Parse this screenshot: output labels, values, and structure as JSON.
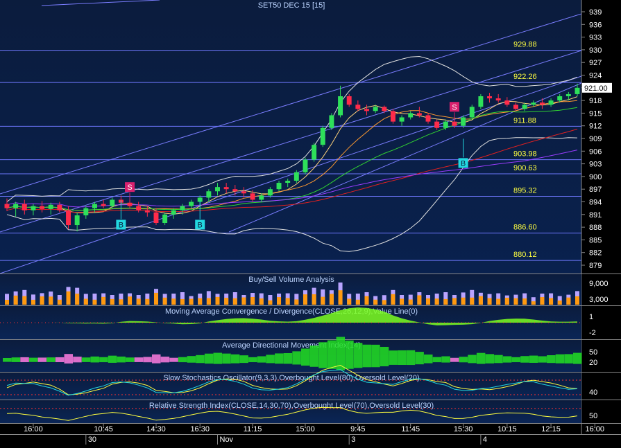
{
  "chart_data": {
    "type": "line",
    "title": "SET50 DEC 15   [15]",
    "last_price": "921.00",
    "price_axis_ticks": [
      "939",
      "936",
      "933",
      "930",
      "927",
      "924",
      "921",
      "918",
      "915",
      "912",
      "909",
      "906",
      "903",
      "900",
      "897",
      "894",
      "891",
      "888",
      "885",
      "882",
      "879"
    ],
    "ylim": [
      877.5,
      941
    ],
    "horizontal_levels": [
      {
        "label": "929.88",
        "value": 929.88
      },
      {
        "label": "922.26",
        "value": 922.26
      },
      {
        "label": "911.88",
        "value": 911.88
      },
      {
        "label": "903.98",
        "value": 903.98
      },
      {
        "label": "900.63",
        "value": 900.63
      },
      {
        "label": "895.32",
        "value": 895.32
      },
      {
        "label": "886.60",
        "value": 886.6
      },
      {
        "label": "880.12",
        "value": 880.12
      }
    ],
    "signals": [
      {
        "text": "B",
        "bar": 13,
        "price": 888.6,
        "kind": "buy"
      },
      {
        "text": "S",
        "bar": 14,
        "price": 897.5,
        "kind": "sell"
      },
      {
        "text": "B",
        "bar": 22,
        "price": 888.6,
        "kind": "buy"
      },
      {
        "text": "S",
        "bar": 51,
        "price": 916.5,
        "kind": "sell"
      },
      {
        "text": "B",
        "bar": 52,
        "price": 903.2,
        "kind": "buy"
      }
    ],
    "candles": [
      {
        "o": 893.5,
        "h": 894.8,
        "l": 891.8,
        "c": 892.5
      },
      {
        "o": 892.5,
        "h": 894.0,
        "l": 890.5,
        "c": 893.5
      },
      {
        "o": 893.5,
        "h": 894.5,
        "l": 891.0,
        "c": 892.0
      },
      {
        "o": 892.0,
        "h": 893.5,
        "l": 890.8,
        "c": 893.0
      },
      {
        "o": 893.0,
        "h": 894.2,
        "l": 891.5,
        "c": 892.3
      },
      {
        "o": 892.3,
        "h": 893.8,
        "l": 891.0,
        "c": 893.3
      },
      {
        "o": 893.3,
        "h": 894.0,
        "l": 891.5,
        "c": 892.0
      },
      {
        "o": 892.0,
        "h": 893.0,
        "l": 887.5,
        "c": 888.5
      },
      {
        "o": 888.5,
        "h": 891.5,
        "l": 887.0,
        "c": 890.8
      },
      {
        "o": 890.8,
        "h": 893.0,
        "l": 890.0,
        "c": 892.5
      },
      {
        "o": 892.5,
        "h": 894.0,
        "l": 891.5,
        "c": 893.5
      },
      {
        "o": 893.5,
        "h": 894.5,
        "l": 892.5,
        "c": 893.0
      },
      {
        "o": 893.0,
        "h": 895.0,
        "l": 892.5,
        "c": 894.5
      },
      {
        "o": 894.5,
        "h": 895.5,
        "l": 893.0,
        "c": 893.8
      },
      {
        "o": 893.8,
        "h": 894.5,
        "l": 892.5,
        "c": 893.0
      },
      {
        "o": 893.0,
        "h": 894.0,
        "l": 891.5,
        "c": 892.0
      },
      {
        "o": 892.0,
        "h": 893.0,
        "l": 890.5,
        "c": 891.5
      },
      {
        "o": 891.5,
        "h": 892.5,
        "l": 888.5,
        "c": 889.0
      },
      {
        "o": 889.0,
        "h": 891.5,
        "l": 888.5,
        "c": 891.0
      },
      {
        "o": 891.0,
        "h": 892.5,
        "l": 890.0,
        "c": 892.0
      },
      {
        "o": 892.0,
        "h": 893.5,
        "l": 891.0,
        "c": 893.0
      },
      {
        "o": 893.0,
        "h": 894.5,
        "l": 892.5,
        "c": 894.0
      },
      {
        "o": 894.0,
        "h": 895.5,
        "l": 893.0,
        "c": 895.0
      },
      {
        "o": 895.0,
        "h": 897.0,
        "l": 894.0,
        "c": 896.5
      },
      {
        "o": 896.5,
        "h": 898.5,
        "l": 895.5,
        "c": 897.5
      },
      {
        "o": 897.5,
        "h": 898.5,
        "l": 896.0,
        "c": 897.0
      },
      {
        "o": 897.0,
        "h": 898.0,
        "l": 895.5,
        "c": 896.5
      },
      {
        "o": 896.5,
        "h": 897.5,
        "l": 895.0,
        "c": 896.0
      },
      {
        "o": 896.0,
        "h": 896.8,
        "l": 894.0,
        "c": 894.5
      },
      {
        "o": 894.5,
        "h": 896.0,
        "l": 894.0,
        "c": 895.5
      },
      {
        "o": 895.5,
        "h": 897.5,
        "l": 895.0,
        "c": 897.0
      },
      {
        "o": 897.0,
        "h": 899.0,
        "l": 896.5,
        "c": 898.5
      },
      {
        "o": 898.5,
        "h": 899.5,
        "l": 897.5,
        "c": 899.0
      },
      {
        "o": 899.0,
        "h": 901.5,
        "l": 898.5,
        "c": 901.0
      },
      {
        "o": 901.0,
        "h": 904.5,
        "l": 900.5,
        "c": 904.0
      },
      {
        "o": 904.0,
        "h": 908.0,
        "l": 903.5,
        "c": 907.5
      },
      {
        "o": 907.5,
        "h": 912.0,
        "l": 907.0,
        "c": 911.5
      },
      {
        "o": 911.5,
        "h": 915.0,
        "l": 911.0,
        "c": 914.5
      },
      {
        "o": 914.5,
        "h": 921.5,
        "l": 914.0,
        "c": 919.0
      },
      {
        "o": 919.0,
        "h": 919.5,
        "l": 916.5,
        "c": 917.0
      },
      {
        "o": 917.0,
        "h": 918.0,
        "l": 915.5,
        "c": 916.0
      },
      {
        "o": 916.0,
        "h": 917.0,
        "l": 914.5,
        "c": 915.5
      },
      {
        "o": 915.5,
        "h": 917.0,
        "l": 915.0,
        "c": 916.5
      },
      {
        "o": 916.5,
        "h": 916.8,
        "l": 915.0,
        "c": 915.5
      },
      {
        "o": 915.5,
        "h": 916.0,
        "l": 912.5,
        "c": 913.0
      },
      {
        "o": 913.0,
        "h": 914.5,
        "l": 912.0,
        "c": 914.0
      },
      {
        "o": 914.0,
        "h": 915.5,
        "l": 913.5,
        "c": 915.0
      },
      {
        "o": 915.0,
        "h": 916.5,
        "l": 914.0,
        "c": 914.5
      },
      {
        "o": 914.5,
        "h": 915.0,
        "l": 912.5,
        "c": 913.0
      },
      {
        "o": 913.0,
        "h": 913.5,
        "l": 911.0,
        "c": 911.5
      },
      {
        "o": 911.5,
        "h": 913.5,
        "l": 911.0,
        "c": 913.0
      },
      {
        "o": 913.0,
        "h": 914.0,
        "l": 911.5,
        "c": 912.0
      },
      {
        "o": 912.0,
        "h": 914.5,
        "l": 911.5,
        "c": 914.0
      },
      {
        "o": 914.0,
        "h": 917.0,
        "l": 913.5,
        "c": 916.5
      },
      {
        "o": 916.5,
        "h": 919.5,
        "l": 916.0,
        "c": 919.0
      },
      {
        "o": 919.0,
        "h": 919.8,
        "l": 917.5,
        "c": 918.5
      },
      {
        "o": 918.5,
        "h": 919.5,
        "l": 917.5,
        "c": 918.0
      },
      {
        "o": 918.0,
        "h": 918.8,
        "l": 916.5,
        "c": 917.0
      },
      {
        "o": 917.0,
        "h": 917.5,
        "l": 915.5,
        "c": 916.0
      },
      {
        "o": 916.0,
        "h": 917.5,
        "l": 915.5,
        "c": 917.0
      },
      {
        "o": 917.0,
        "h": 918.0,
        "l": 916.5,
        "c": 917.5
      },
      {
        "o": 917.5,
        "h": 918.5,
        "l": 916.0,
        "c": 917.0
      },
      {
        "o": 917.0,
        "h": 918.5,
        "l": 916.5,
        "c": 918.0
      },
      {
        "o": 918.0,
        "h": 919.5,
        "l": 917.5,
        "c": 919.0
      },
      {
        "o": 919.0,
        "h": 920.0,
        "l": 918.0,
        "c": 919.5
      },
      {
        "o": 919.5,
        "h": 922.0,
        "l": 919.0,
        "c": 921.0
      }
    ],
    "time_labels": [
      {
        "text": "16:00",
        "bar": 3
      },
      {
        "text": "10:45",
        "bar": 11
      },
      {
        "text": "14:30",
        "bar": 17
      },
      {
        "text": "16:30",
        "bar": 22
      },
      {
        "text": "11:15",
        "bar": 28
      },
      {
        "text": "15:00",
        "bar": 34
      },
      {
        "text": "9:45",
        "bar": 40
      },
      {
        "text": "11:45",
        "bar": 46
      },
      {
        "text": "15:30",
        "bar": 52
      },
      {
        "text": "10:15",
        "bar": 57
      },
      {
        "text": "12:15",
        "bar": 62
      },
      {
        "text": "16:00",
        "bar": 67
      }
    ],
    "date_labels": [
      {
        "text": "30",
        "bar": 9
      },
      {
        "text": "Nov",
        "bar": 24
      },
      {
        "text": "3",
        "bar": 39
      },
      {
        "text": "4",
        "bar": 54
      }
    ],
    "panels": [
      {
        "key": "vol",
        "title": "Buy/Sell Volume Analysis",
        "ticks": [
          "9,000",
          "3,000"
        ]
      },
      {
        "key": "macd",
        "title": "Moving Average Convergence / Divergence(CLOSE,26,12,9),Value Line(0)",
        "ticks": [
          "1",
          "-2"
        ]
      },
      {
        "key": "adx",
        "title": "Average Directional Movement Index(14)",
        "ticks": [
          "50",
          "20"
        ]
      },
      {
        "key": "stoch",
        "title": "Slow Stochastics Oscillator(9,3,3),Overbought Level(80),Oversold Level(20)",
        "ticks": [
          "40"
        ]
      },
      {
        "key": "rsi",
        "title": "Relative Strength Index(CLOSE,14,30,70),Overbought Level(70),Oversold Level(30)",
        "ticks": [
          "50"
        ]
      }
    ]
  },
  "colors": {
    "background": "#000000",
    "plot_top": "#0b1c3d",
    "plot_bottom": "#09214e",
    "level_line": "#6f78ff",
    "level_label": "#ffff40",
    "axis_text": "#ffffff",
    "candle_up": "#2ee05a",
    "candle_down": "#ff2b4a",
    "buy_marker": "#22d8e0",
    "sell_marker": "#d8206e",
    "vol_buy": "#ff9a10",
    "vol_sell": "#b9a4ff",
    "macd_pos": "#7dff20",
    "macd_neg": "#ff1010",
    "adx_bear": "#ff7be0",
    "adx_bull": "#22e022",
    "panel_title": "#bcd4ff"
  }
}
